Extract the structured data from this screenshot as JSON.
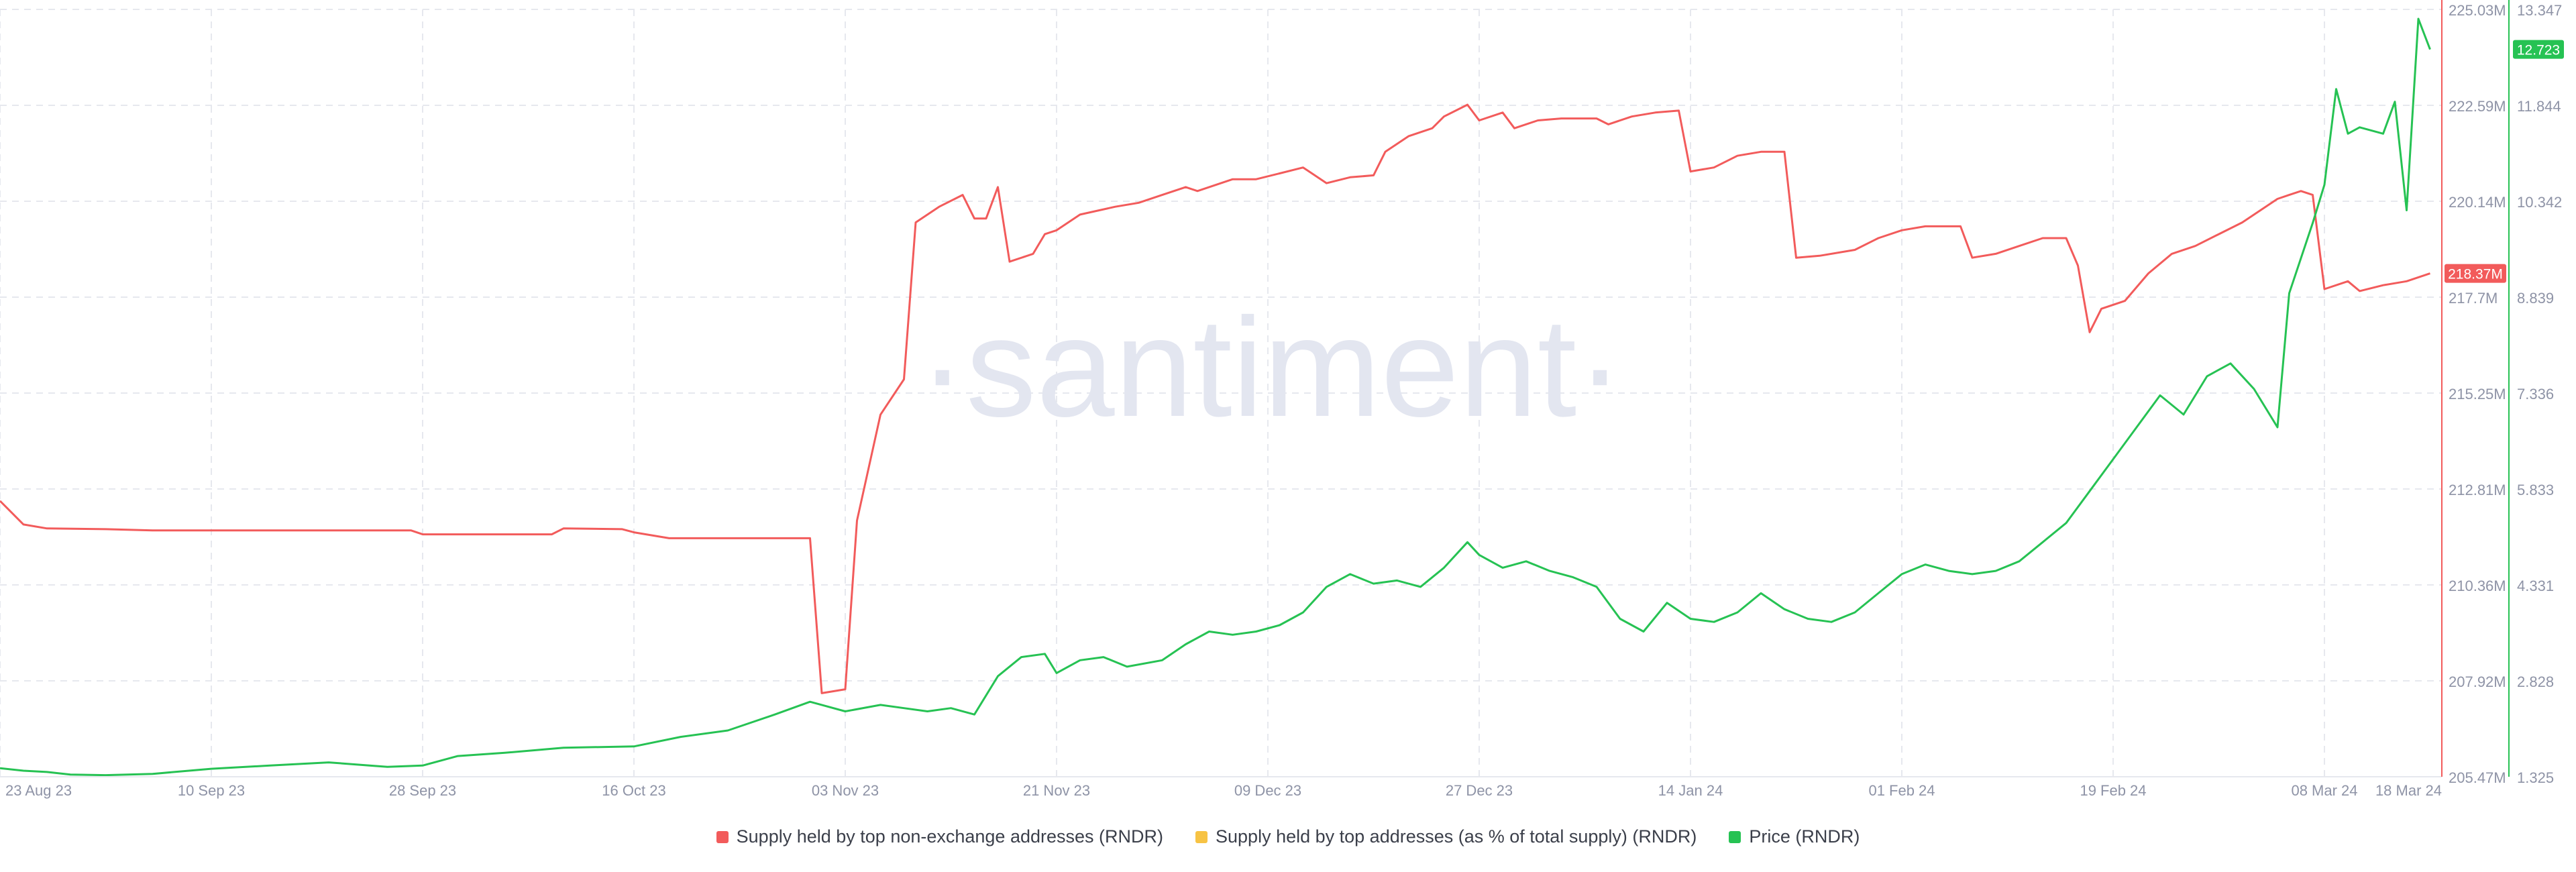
{
  "watermark": "·santiment·",
  "colors": {
    "supply": "#f25b5b",
    "supply_pct": "#f7c344",
    "price": "#26c253",
    "grid": "#e6e8ee",
    "axis_text": "#8e93a6",
    "watermark": "#e3e6f0"
  },
  "chart_data": {
    "type": "line",
    "x_ticks": [
      "23 Aug 23",
      "10 Sep 23",
      "28 Sep 23",
      "16 Oct 23",
      "03 Nov 23",
      "21 Nov 23",
      "09 Dec 23",
      "27 Dec 23",
      "14 Jan 24",
      "01 Feb 24",
      "19 Feb 24",
      "08 Mar 24",
      "18 Mar 24"
    ],
    "x_range": [
      "2023-08-23",
      "2024-03-18"
    ],
    "y_left": {
      "ticks": [
        "225.03M",
        "222.59M",
        "220.14M",
        "217.7M",
        "215.25M",
        "212.81M",
        "210.36M",
        "207.92M",
        "205.47M"
      ],
      "min": 205.47,
      "max": 225.03,
      "unit": "M"
    },
    "y_right": {
      "ticks": [
        "13.347",
        "11.844",
        "10.342",
        "8.839",
        "7.336",
        "5.833",
        "4.331",
        "2.828",
        "1.325"
      ],
      "min": 1.325,
      "max": 13.347
    },
    "series": [
      {
        "name": "Supply held by top non-exchange addresses (RNDR)",
        "axis": "left",
        "last_label": "218.37M",
        "points": [
          [
            "2023-08-23",
            212.5
          ],
          [
            "2023-08-25",
            211.9
          ],
          [
            "2023-08-27",
            211.8
          ],
          [
            "2023-09-01",
            211.78
          ],
          [
            "2023-09-05",
            211.75
          ],
          [
            "2023-09-10",
            211.75
          ],
          [
            "2023-09-15",
            211.75
          ],
          [
            "2023-09-20",
            211.75
          ],
          [
            "2023-09-25",
            211.75
          ],
          [
            "2023-09-27",
            211.75
          ],
          [
            "2023-09-28",
            211.65
          ],
          [
            "2023-10-01",
            211.65
          ],
          [
            "2023-10-05",
            211.65
          ],
          [
            "2023-10-09",
            211.65
          ],
          [
            "2023-10-10",
            211.8
          ],
          [
            "2023-10-15",
            211.78
          ],
          [
            "2023-10-16",
            211.7
          ],
          [
            "2023-10-19",
            211.55
          ],
          [
            "2023-10-25",
            211.55
          ],
          [
            "2023-10-31",
            211.55
          ],
          [
            "2023-11-01",
            207.6
          ],
          [
            "2023-11-03",
            207.7
          ],
          [
            "2023-11-04",
            212.0
          ],
          [
            "2023-11-06",
            214.7
          ],
          [
            "2023-11-08",
            215.6
          ],
          [
            "2023-11-09",
            219.6
          ],
          [
            "2023-11-11",
            220.0
          ],
          [
            "2023-11-13",
            220.3
          ],
          [
            "2023-11-14",
            219.7
          ],
          [
            "2023-11-15",
            219.7
          ],
          [
            "2023-11-16",
            220.5
          ],
          [
            "2023-11-17",
            218.6
          ],
          [
            "2023-11-19",
            218.8
          ],
          [
            "2023-11-20",
            219.3
          ],
          [
            "2023-11-21",
            219.4
          ],
          [
            "2023-11-23",
            219.8
          ],
          [
            "2023-11-26",
            220.0
          ],
          [
            "2023-11-28",
            220.1
          ],
          [
            "2023-11-30",
            220.3
          ],
          [
            "2023-12-02",
            220.5
          ],
          [
            "2023-12-03",
            220.4
          ],
          [
            "2023-12-06",
            220.7
          ],
          [
            "2023-12-08",
            220.7
          ],
          [
            "2023-12-10",
            220.85
          ],
          [
            "2023-12-12",
            221.0
          ],
          [
            "2023-12-14",
            220.6
          ],
          [
            "2023-12-16",
            220.75
          ],
          [
            "2023-12-18",
            220.8
          ],
          [
            "2023-12-19",
            221.4
          ],
          [
            "2023-12-21",
            221.8
          ],
          [
            "2023-12-23",
            222.0
          ],
          [
            "2023-12-24",
            222.3
          ],
          [
            "2023-12-26",
            222.6
          ],
          [
            "2023-12-27",
            222.2
          ],
          [
            "2023-12-29",
            222.4
          ],
          [
            "2023-12-30",
            222.0
          ],
          [
            "2024-01-01",
            222.2
          ],
          [
            "2024-01-03",
            222.25
          ],
          [
            "2024-01-06",
            222.25
          ],
          [
            "2024-01-07",
            222.1
          ],
          [
            "2024-01-09",
            222.3
          ],
          [
            "2024-01-11",
            222.4
          ],
          [
            "2024-01-13",
            222.45
          ],
          [
            "2024-01-14",
            220.9
          ],
          [
            "2024-01-16",
            221.0
          ],
          [
            "2024-01-18",
            221.3
          ],
          [
            "2024-01-20",
            221.4
          ],
          [
            "2024-01-22",
            221.4
          ],
          [
            "2024-01-23",
            218.7
          ],
          [
            "2024-01-25",
            218.75
          ],
          [
            "2024-01-28",
            218.9
          ],
          [
            "2024-01-30",
            219.2
          ],
          [
            "2024-02-01",
            219.4
          ],
          [
            "2024-02-03",
            219.5
          ],
          [
            "2024-02-06",
            219.5
          ],
          [
            "2024-02-07",
            218.7
          ],
          [
            "2024-02-09",
            218.8
          ],
          [
            "2024-02-11",
            219.0
          ],
          [
            "2024-02-13",
            219.2
          ],
          [
            "2024-02-15",
            219.2
          ],
          [
            "2024-02-16",
            218.5
          ],
          [
            "2024-02-17",
            216.8
          ],
          [
            "2024-02-18",
            217.4
          ],
          [
            "2024-02-20",
            217.6
          ],
          [
            "2024-02-22",
            218.3
          ],
          [
            "2024-02-24",
            218.8
          ],
          [
            "2024-02-26",
            219.0
          ],
          [
            "2024-02-28",
            219.3
          ],
          [
            "2024-03-01",
            219.6
          ],
          [
            "2024-03-04",
            220.2
          ],
          [
            "2024-03-05",
            220.3
          ],
          [
            "2024-03-06",
            220.4
          ],
          [
            "2024-03-07",
            220.3
          ],
          [
            "2024-03-08",
            217.9
          ],
          [
            "2024-03-10",
            218.1
          ],
          [
            "2024-03-11",
            217.85
          ],
          [
            "2024-03-13",
            218.0
          ],
          [
            "2024-03-15",
            218.1
          ],
          [
            "2024-03-17",
            218.3
          ]
        ]
      },
      {
        "name": "Supply held by top addresses (as % of total supply) (RNDR)",
        "axis": "left",
        "points": []
      },
      {
        "name": "Price (RNDR)",
        "axis": "right",
        "last_label": "12.723",
        "points": [
          [
            "2023-08-23",
            1.46
          ],
          [
            "2023-08-25",
            1.42
          ],
          [
            "2023-08-27",
            1.4
          ],
          [
            "2023-08-29",
            1.36
          ],
          [
            "2023-09-01",
            1.35
          ],
          [
            "2023-09-05",
            1.37
          ],
          [
            "2023-09-10",
            1.45
          ],
          [
            "2023-09-15",
            1.5
          ],
          [
            "2023-09-20",
            1.55
          ],
          [
            "2023-09-25",
            1.48
          ],
          [
            "2023-09-28",
            1.5
          ],
          [
            "2023-10-01",
            1.65
          ],
          [
            "2023-10-05",
            1.7
          ],
          [
            "2023-10-10",
            1.78
          ],
          [
            "2023-10-16",
            1.8
          ],
          [
            "2023-10-20",
            1.95
          ],
          [
            "2023-10-24",
            2.05
          ],
          [
            "2023-10-28",
            2.3
          ],
          [
            "2023-10-31",
            2.5
          ],
          [
            "2023-11-01",
            2.45
          ],
          [
            "2023-11-03",
            2.35
          ],
          [
            "2023-11-06",
            2.45
          ],
          [
            "2023-11-08",
            2.4
          ],
          [
            "2023-11-10",
            2.35
          ],
          [
            "2023-11-12",
            2.4
          ],
          [
            "2023-11-14",
            2.3
          ],
          [
            "2023-11-16",
            2.9
          ],
          [
            "2023-11-18",
            3.2
          ],
          [
            "2023-11-20",
            3.25
          ],
          [
            "2023-11-21",
            2.95
          ],
          [
            "2023-11-23",
            3.15
          ],
          [
            "2023-11-25",
            3.2
          ],
          [
            "2023-11-27",
            3.05
          ],
          [
            "2023-11-30",
            3.15
          ],
          [
            "2023-12-02",
            3.4
          ],
          [
            "2023-12-04",
            3.6
          ],
          [
            "2023-12-06",
            3.55
          ],
          [
            "2023-12-08",
            3.6
          ],
          [
            "2023-12-10",
            3.7
          ],
          [
            "2023-12-12",
            3.9
          ],
          [
            "2023-12-14",
            4.3
          ],
          [
            "2023-12-16",
            4.5
          ],
          [
            "2023-12-18",
            4.35
          ],
          [
            "2023-12-20",
            4.4
          ],
          [
            "2023-12-22",
            4.3
          ],
          [
            "2023-12-24",
            4.6
          ],
          [
            "2023-12-26",
            5.0
          ],
          [
            "2023-12-27",
            4.8
          ],
          [
            "2023-12-29",
            4.6
          ],
          [
            "2023-12-31",
            4.7
          ],
          [
            "2024-01-02",
            4.55
          ],
          [
            "2024-01-04",
            4.45
          ],
          [
            "2024-01-06",
            4.3
          ],
          [
            "2024-01-08",
            3.8
          ],
          [
            "2024-01-10",
            3.6
          ],
          [
            "2024-01-12",
            4.05
          ],
          [
            "2024-01-14",
            3.8
          ],
          [
            "2024-01-16",
            3.75
          ],
          [
            "2024-01-18",
            3.9
          ],
          [
            "2024-01-20",
            4.2
          ],
          [
            "2024-01-22",
            3.95
          ],
          [
            "2024-01-24",
            3.8
          ],
          [
            "2024-01-26",
            3.75
          ],
          [
            "2024-01-28",
            3.9
          ],
          [
            "2024-01-30",
            4.2
          ],
          [
            "2024-02-01",
            4.5
          ],
          [
            "2024-02-03",
            4.65
          ],
          [
            "2024-02-05",
            4.55
          ],
          [
            "2024-02-07",
            4.5
          ],
          [
            "2024-02-09",
            4.55
          ],
          [
            "2024-02-11",
            4.7
          ],
          [
            "2024-02-13",
            5.0
          ],
          [
            "2024-02-15",
            5.3
          ],
          [
            "2024-02-17",
            5.8
          ],
          [
            "2024-02-19",
            6.3
          ],
          [
            "2024-02-21",
            6.8
          ],
          [
            "2024-02-23",
            7.3
          ],
          [
            "2024-02-25",
            7.0
          ],
          [
            "2024-02-27",
            7.6
          ],
          [
            "2024-02-29",
            7.8
          ],
          [
            "2024-03-02",
            7.4
          ],
          [
            "2024-03-04",
            6.8
          ],
          [
            "2024-03-05",
            8.9
          ],
          [
            "2024-03-07",
            10.0
          ],
          [
            "2024-03-08",
            10.6
          ],
          [
            "2024-03-09",
            12.1
          ],
          [
            "2024-03-10",
            11.4
          ],
          [
            "2024-03-11",
            11.5
          ],
          [
            "2024-03-13",
            11.4
          ],
          [
            "2024-03-14",
            11.9
          ],
          [
            "2024-03-15",
            10.2
          ],
          [
            "2024-03-16",
            13.2
          ],
          [
            "2024-03-17",
            12.72
          ]
        ]
      }
    ],
    "grid": true,
    "legend_placement": "bottom-center"
  }
}
